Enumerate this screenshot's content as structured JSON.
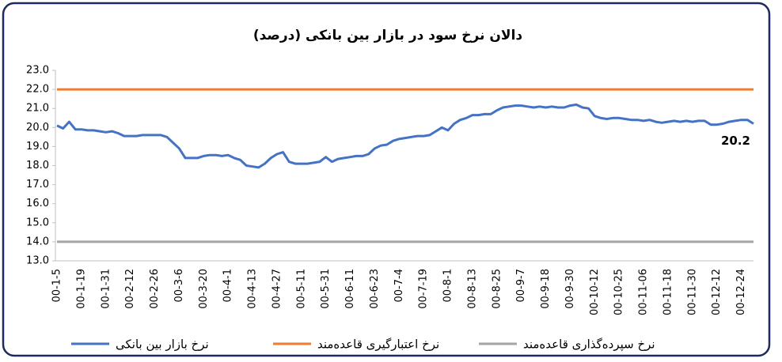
{
  "chart_data": {
    "type": "line",
    "title": "دالان نرخ سود در بازار بین بانکی (درصد)",
    "categories": [
      "00-1-5",
      null,
      null,
      null,
      "00-1-19",
      null,
      null,
      null,
      "00-1-31",
      null,
      null,
      null,
      "00-2-12",
      null,
      null,
      null,
      "00-2-26",
      null,
      null,
      null,
      "00-3-6",
      null,
      null,
      null,
      "00-3-20",
      null,
      null,
      null,
      "00-4-1",
      null,
      null,
      null,
      "00-4-13",
      null,
      null,
      null,
      "00-4-27",
      null,
      null,
      null,
      "00-5-11",
      null,
      null,
      null,
      "00-5-31",
      null,
      null,
      null,
      "00-6-11",
      null,
      null,
      null,
      "00-6-23",
      null,
      null,
      null,
      "00-7-4",
      null,
      null,
      null,
      "00-7-19",
      null,
      null,
      null,
      "00-8-1",
      null,
      null,
      null,
      "00-8-13",
      null,
      null,
      null,
      "00-8-25",
      null,
      null,
      null,
      "00-9-7",
      null,
      null,
      null,
      "00-9-18",
      null,
      null,
      null,
      "00-9-30",
      null,
      null,
      null,
      "00-10-12",
      null,
      null,
      null,
      "00-10-25",
      null,
      null,
      null,
      "00-11-06",
      null,
      null,
      null,
      "00-11-18",
      null,
      null,
      null,
      "00-11-30",
      null,
      null,
      null,
      "00-12-12",
      null,
      null,
      null,
      "00-12-24",
      null,
      null
    ],
    "series": [
      {
        "name": "نرخ بازار بین بانکی",
        "color": "#4472c4",
        "label_last": true,
        "values": [
          20.1,
          19.95,
          20.3,
          19.9,
          19.9,
          19.85,
          19.85,
          19.8,
          19.75,
          19.8,
          19.7,
          19.55,
          19.55,
          19.55,
          19.6,
          19.6,
          19.6,
          19.6,
          19.5,
          19.2,
          18.9,
          18.4,
          18.4,
          18.4,
          18.5,
          18.55,
          18.55,
          18.5,
          18.55,
          18.4,
          18.3,
          18.0,
          17.95,
          17.9,
          18.1,
          18.4,
          18.6,
          18.7,
          18.2,
          18.1,
          18.1,
          18.1,
          18.15,
          18.2,
          18.45,
          18.2,
          18.35,
          18.4,
          18.45,
          18.5,
          18.5,
          18.6,
          18.9,
          19.05,
          19.1,
          19.3,
          19.4,
          19.45,
          19.5,
          19.55,
          19.55,
          19.6,
          19.8,
          20.0,
          19.85,
          20.2,
          20.4,
          20.5,
          20.65,
          20.65,
          20.7,
          20.7,
          20.9,
          21.05,
          21.1,
          21.15,
          21.15,
          21.1,
          21.05,
          21.1,
          21.05,
          21.1,
          21.05,
          21.05,
          21.15,
          21.2,
          21.05,
          21.0,
          20.6,
          20.5,
          20.45,
          20.5,
          20.5,
          20.45,
          20.4,
          20.4,
          20.35,
          20.4,
          20.3,
          20.25,
          20.3,
          20.35,
          20.3,
          20.35,
          20.3,
          20.35,
          20.35,
          20.15,
          20.15,
          20.2,
          20.3,
          20.35,
          20.4,
          20.4,
          20.2
        ]
      },
      {
        "name": "نرخ اعتبارگیری قاعده‌مند",
        "color": "#ed7d31",
        "values": [
          22,
          22,
          22,
          22,
          22,
          22,
          22,
          22,
          22,
          22,
          22,
          22,
          22,
          22,
          22,
          22,
          22,
          22,
          22,
          22,
          22,
          22,
          22,
          22,
          22,
          22,
          22,
          22,
          22,
          22,
          22,
          22,
          22,
          22,
          22,
          22,
          22,
          22,
          22,
          22,
          22,
          22,
          22,
          22,
          22,
          22,
          22,
          22,
          22,
          22,
          22,
          22,
          22,
          22,
          22,
          22,
          22,
          22,
          22,
          22,
          22,
          22,
          22,
          22,
          22,
          22,
          22,
          22,
          22,
          22,
          22,
          22,
          22,
          22,
          22,
          22,
          22,
          22,
          22,
          22,
          22,
          22,
          22,
          22,
          22,
          22,
          22,
          22,
          22,
          22,
          22,
          22,
          22,
          22,
          22,
          22,
          22,
          22,
          22,
          22,
          22,
          22,
          22,
          22,
          22,
          22,
          22,
          22,
          22,
          22,
          22,
          22,
          22,
          22,
          22
        ]
      },
      {
        "name": "نرخ سپرده‌گذاری قاعده‌مند",
        "color": "#a5a5a5",
        "values": [
          14,
          14,
          14,
          14,
          14,
          14,
          14,
          14,
          14,
          14,
          14,
          14,
          14,
          14,
          14,
          14,
          14,
          14,
          14,
          14,
          14,
          14,
          14,
          14,
          14,
          14,
          14,
          14,
          14,
          14,
          14,
          14,
          14,
          14,
          14,
          14,
          14,
          14,
          14,
          14,
          14,
          14,
          14,
          14,
          14,
          14,
          14,
          14,
          14,
          14,
          14,
          14,
          14,
          14,
          14,
          14,
          14,
          14,
          14,
          14,
          14,
          14,
          14,
          14,
          14,
          14,
          14,
          14,
          14,
          14,
          14,
          14,
          14,
          14,
          14,
          14,
          14,
          14,
          14,
          14,
          14,
          14,
          14,
          14,
          14,
          14,
          14,
          14,
          14,
          14,
          14,
          14,
          14,
          14,
          14,
          14,
          14,
          14,
          14,
          14,
          14,
          14,
          14,
          14,
          14,
          14,
          14,
          14,
          14,
          14,
          14,
          14,
          14,
          14,
          14
        ]
      }
    ],
    "ylim": [
      13,
      23
    ],
    "yticks": [
      {
        "value": 13,
        "label": "13.0"
      },
      {
        "value": 14,
        "label": "14.0"
      },
      {
        "value": 15,
        "label": "15.0"
      },
      {
        "value": 16,
        "label": "16.0"
      },
      {
        "value": 17,
        "label": "17.0"
      },
      {
        "value": 18,
        "label": "18.0"
      },
      {
        "value": 19,
        "label": "19.0"
      },
      {
        "value": 20,
        "label": "20.0"
      },
      {
        "value": 21,
        "label": "21.0"
      },
      {
        "value": 22,
        "label": "22.0"
      },
      {
        "value": 23,
        "label": "23.0"
      }
    ],
    "grid": false
  }
}
